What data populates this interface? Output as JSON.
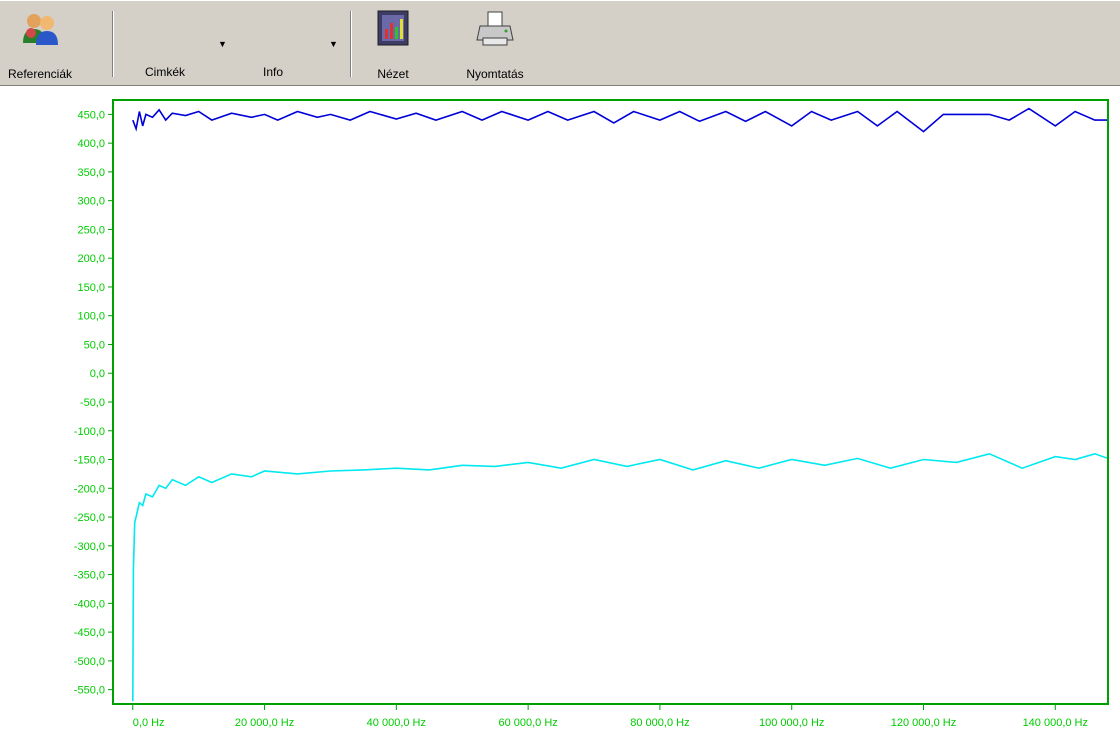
{
  "toolbar": {
    "references_label": "Referenciák",
    "labels_dropdown_label": "Cimkék",
    "info_dropdown_label": "Info",
    "view_label": "Nézet",
    "print_label": "Nyomtatás"
  },
  "colors": {
    "axis": "#00a000",
    "tick_text": "#00cc00",
    "series_top": "#0000d8",
    "series_bottom": "#00e8f0"
  },
  "chart_data": {
    "type": "line",
    "ylim": [
      -575,
      475
    ],
    "xlim": [
      -3000,
      148000
    ],
    "yticks": [
      "450,0",
      "400,0",
      "350,0",
      "300,0",
      "250,0",
      "200,0",
      "150,0",
      "100,0",
      "50,0",
      "0,0",
      "-50,0",
      "-100,0",
      "-150,0",
      "-200,0",
      "-250,0",
      "-300,0",
      "-350,0",
      "-400,0",
      "-450,0",
      "-500,0",
      "-550,0"
    ],
    "xticks": [
      "0,0 Hz",
      "20 000,0 Hz",
      "40 000,0 Hz",
      "60 000,0 Hz",
      "80 000,0 Hz",
      "100 000,0 Hz",
      "120 000,0 Hz",
      "140 000,0 Hz"
    ],
    "series": [
      {
        "x": [
          0,
          500,
          1000,
          1500,
          2000,
          3000,
          4000,
          5000,
          6000,
          8000,
          10000,
          12000,
          15000,
          18000,
          20000,
          22000,
          25000,
          28000,
          30000,
          33000,
          36000,
          40000,
          43000,
          46000,
          50000,
          53000,
          56000,
          60000,
          63000,
          66000,
          70000,
          73000,
          76000,
          80000,
          83000,
          86000,
          90000,
          93000,
          96000,
          100000,
          103000,
          106000,
          110000,
          113000,
          116000,
          120000,
          123000,
          126000,
          130000,
          133000,
          136000,
          140000,
          143000,
          146000,
          148000
        ],
        "y": [
          440,
          425,
          455,
          430,
          450,
          445,
          458,
          440,
          452,
          448,
          455,
          440,
          452,
          445,
          450,
          440,
          455,
          445,
          450,
          440,
          455,
          442,
          452,
          440,
          455,
          440,
          455,
          440,
          455,
          440,
          455,
          435,
          455,
          440,
          455,
          438,
          455,
          438,
          455,
          430,
          455,
          440,
          455,
          430,
          455,
          420,
          450,
          450,
          450,
          440,
          460,
          430,
          455,
          440,
          440
        ]
      },
      {
        "x": [
          0,
          100,
          300,
          600,
          1000,
          1500,
          2000,
          3000,
          4000,
          5000,
          6000,
          8000,
          10000,
          12000,
          15000,
          18000,
          20000,
          25000,
          30000,
          35000,
          40000,
          45000,
          50000,
          55000,
          60000,
          65000,
          70000,
          75000,
          80000,
          85000,
          90000,
          95000,
          100000,
          105000,
          110000,
          115000,
          120000,
          125000,
          130000,
          135000,
          140000,
          143000,
          146000,
          148000
        ],
        "y": [
          -570,
          -340,
          -260,
          -245,
          -225,
          -230,
          -210,
          -215,
          -195,
          -200,
          -185,
          -195,
          -180,
          -190,
          -175,
          -180,
          -170,
          -175,
          -170,
          -168,
          -165,
          -168,
          -160,
          -162,
          -155,
          -165,
          -150,
          -162,
          -150,
          -168,
          -152,
          -165,
          -150,
          -160,
          -148,
          -165,
          -150,
          -155,
          -140,
          -165,
          -145,
          -150,
          -140,
          -148
        ]
      }
    ]
  }
}
